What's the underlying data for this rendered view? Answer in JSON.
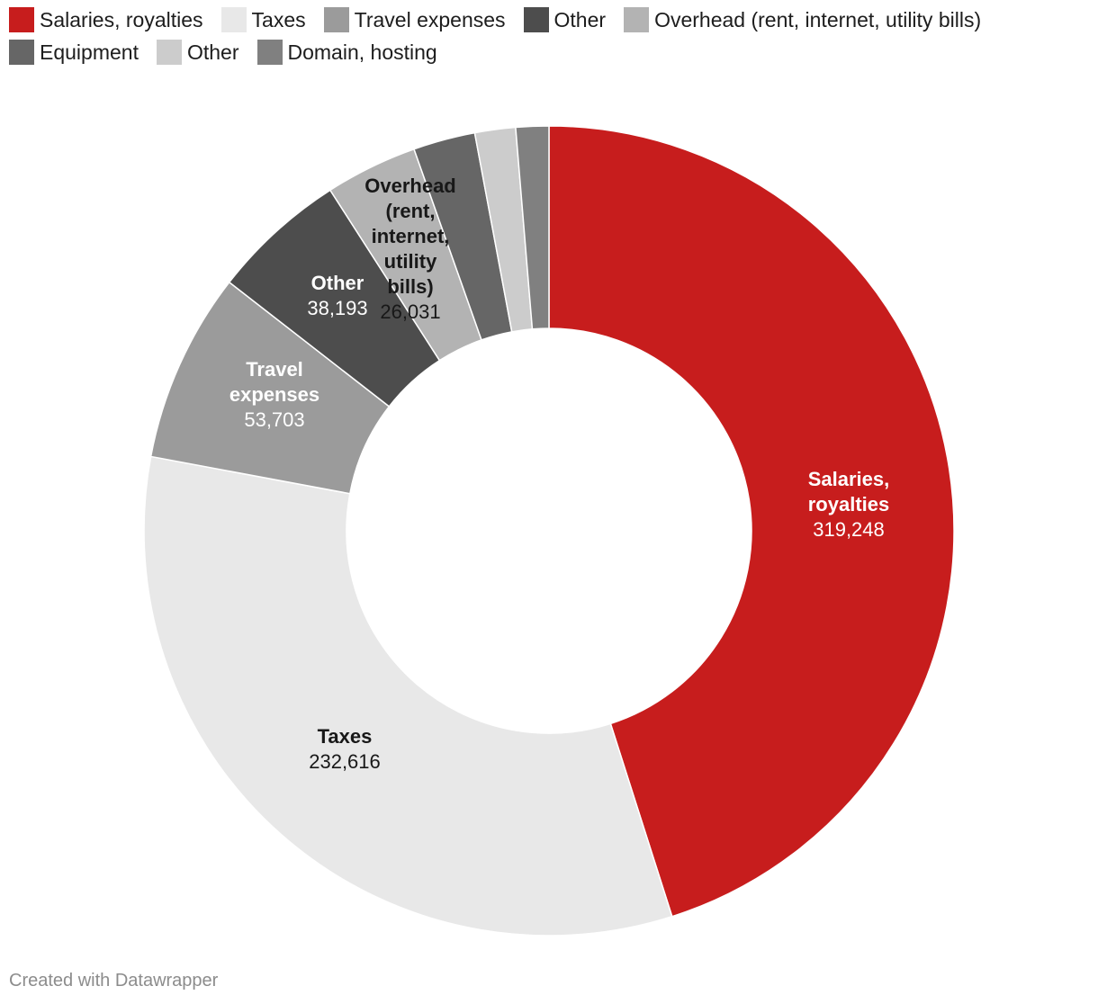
{
  "chart_data": {
    "type": "pie",
    "variant": "donut",
    "title": "",
    "legend_position": "top-left",
    "slices": [
      {
        "label": "Salaries, royalties",
        "value": 319248,
        "color": "#c71d1d",
        "label_color": "#ffffff",
        "show_label": true
      },
      {
        "label": "Taxes",
        "value": 232616,
        "color": "#e8e8e8",
        "label_color": "#181818",
        "show_label": true
      },
      {
        "label": "Travel expenses",
        "value": 53703,
        "color": "#9b9b9b",
        "label_color": "#ffffff",
        "show_label": true
      },
      {
        "label": "Other",
        "value": 38193,
        "color": "#4d4d4d",
        "label_color": "#ffffff",
        "show_label": true
      },
      {
        "label": "Overhead (rent, internet, utility bills)",
        "value": 26031,
        "color": "#b3b3b3",
        "label_color": "#181818",
        "show_label": true
      },
      {
        "label": "Equipment",
        "value": 17500,
        "color": "#666666",
        "label_color": "#ffffff",
        "show_label": false
      },
      {
        "label": "Other",
        "value": 11500,
        "color": "#cccccc",
        "label_color": "#181818",
        "show_label": false
      },
      {
        "label": "Domain, hosting",
        "value": 9300,
        "color": "#808080",
        "label_color": "#ffffff",
        "show_label": false
      }
    ]
  },
  "footer": {
    "credit": "Created with Datawrapper"
  }
}
